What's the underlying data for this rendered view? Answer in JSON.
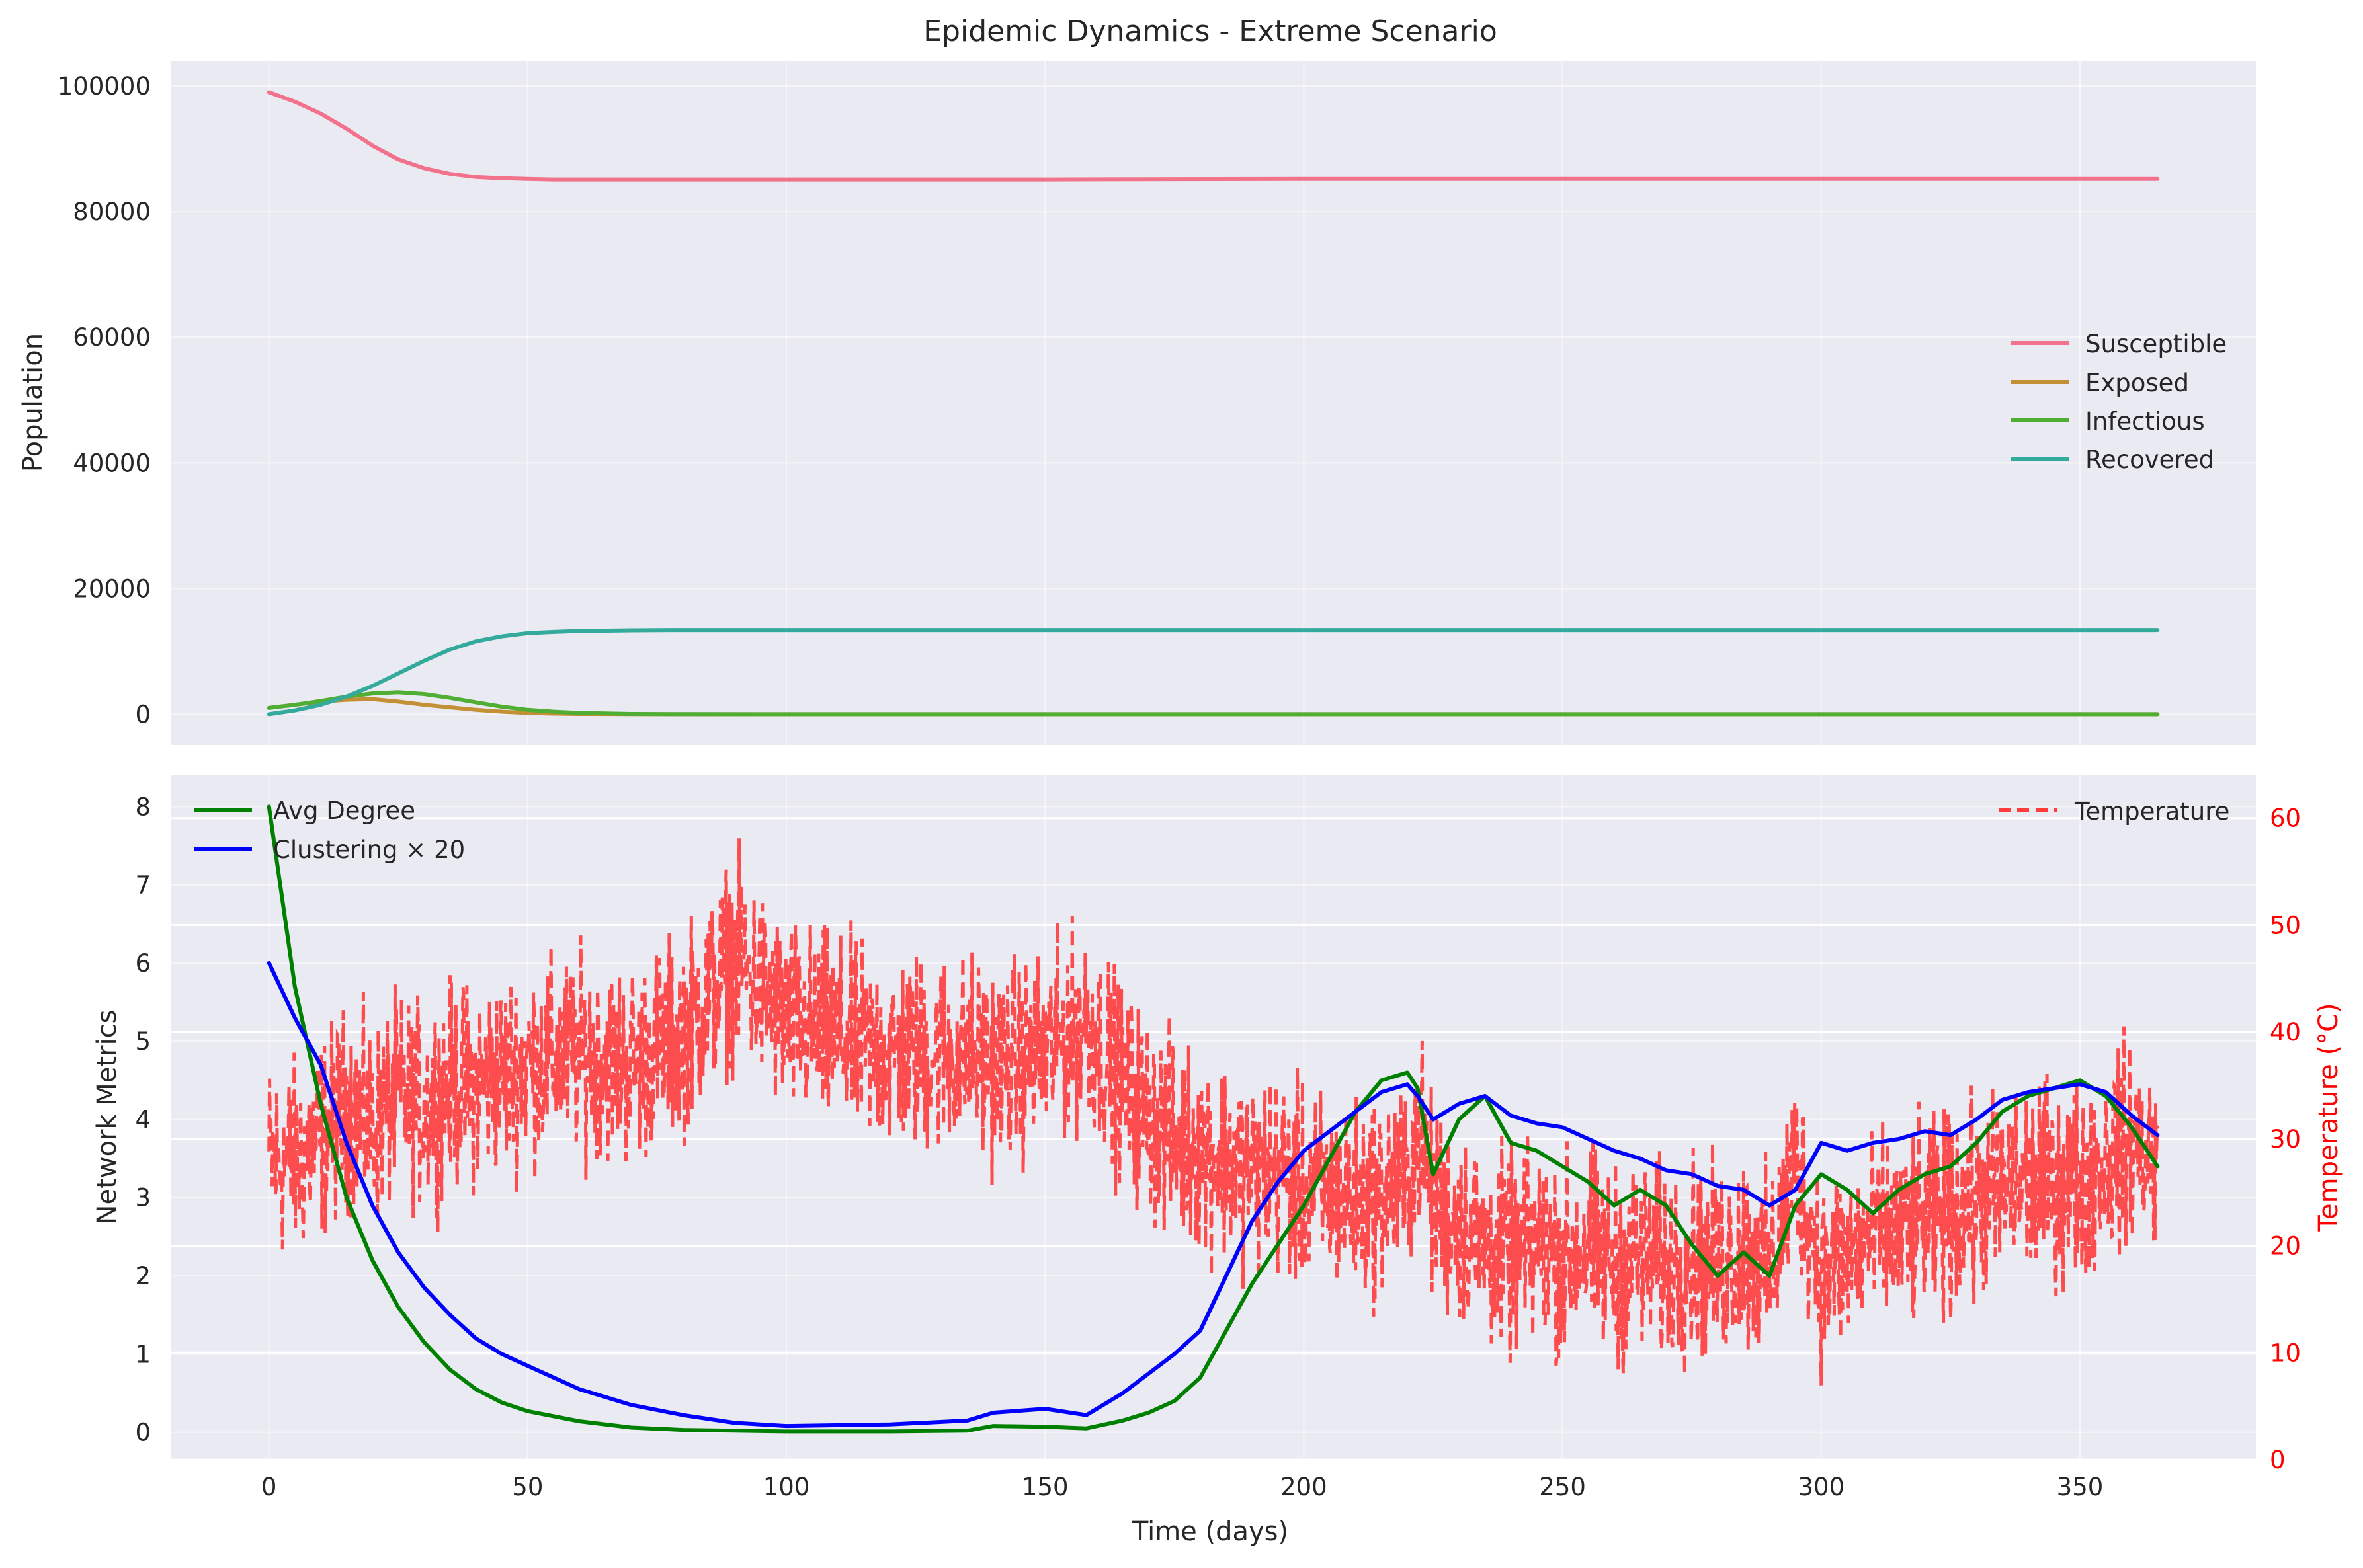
{
  "figure": {
    "title": "Epidemic Dynamics - Extreme Scenario"
  },
  "chart_data": [
    {
      "type": "line",
      "title": "Epidemic Dynamics - Extreme Scenario",
      "xlabel": "",
      "ylabel": "Population",
      "xlim": [
        -19,
        384
      ],
      "ylim": [
        -4900,
        104000
      ],
      "xticks": [
        0,
        50,
        100,
        150,
        200,
        250,
        300,
        350
      ],
      "yticks": [
        0,
        20000,
        40000,
        60000,
        80000,
        100000
      ],
      "grid": true,
      "legend_position": "center-right",
      "x": [
        0,
        5,
        10,
        15,
        20,
        25,
        30,
        35,
        40,
        45,
        50,
        55,
        60,
        70,
        80,
        100,
        150,
        200,
        250,
        300,
        365
      ],
      "series": [
        {
          "name": "Susceptible",
          "color": "#f2728c",
          "values": [
            99000,
            97500,
            95600,
            93200,
            90500,
            88300,
            86900,
            86000,
            85500,
            85300,
            85200,
            85100,
            85100,
            85100,
            85100,
            85100,
            85100,
            85200,
            85200,
            85200,
            85200
          ]
        },
        {
          "name": "Exposed",
          "color": "#c39035",
          "values": [
            1000,
            1500,
            2000,
            2300,
            2400,
            2000,
            1500,
            1100,
            700,
            400,
            200,
            100,
            50,
            10,
            0,
            0,
            0,
            0,
            0,
            0,
            0
          ]
        },
        {
          "name": "Infectious",
          "color": "#4fae33",
          "values": [
            1000,
            1500,
            2100,
            2800,
            3300,
            3500,
            3200,
            2600,
            1900,
            1200,
            700,
            400,
            200,
            50,
            10,
            0,
            0,
            0,
            0,
            0,
            0
          ]
        },
        {
          "name": "Recovered",
          "color": "#33aa9c",
          "values": [
            0,
            600,
            1500,
            2800,
            4500,
            6500,
            8500,
            10300,
            11600,
            12400,
            12900,
            13100,
            13250,
            13350,
            13400,
            13400,
            13400,
            13400,
            13400,
            13400,
            13400
          ]
        }
      ]
    },
    {
      "type": "line",
      "title": "",
      "xlabel": "Time (days)",
      "ylabel": "Network Metrics",
      "y2label": "Temperature (°C)",
      "xlim": [
        -19,
        384
      ],
      "ylim": [
        -0.35,
        8.4
      ],
      "y2lim": [
        0,
        64
      ],
      "xticks": [
        0,
        50,
        100,
        150,
        200,
        250,
        300,
        350
      ],
      "yticks": [
        0,
        1,
        2,
        3,
        4,
        5,
        6,
        7,
        8
      ],
      "y2ticks": [
        0,
        10,
        20,
        30,
        40,
        50,
        60
      ],
      "grid": true,
      "legend_position": "top-left",
      "legend2_position": "top-right",
      "x": [
        0,
        5,
        10,
        15,
        20,
        25,
        30,
        35,
        40,
        45,
        50,
        60,
        70,
        80,
        90,
        100,
        120,
        135,
        140,
        150,
        158,
        165,
        170,
        175,
        180,
        185,
        190,
        195,
        200,
        205,
        210,
        215,
        220,
        222,
        225,
        230,
        235,
        240,
        245,
        250,
        255,
        260,
        265,
        270,
        275,
        280,
        285,
        290,
        295,
        300,
        305,
        310,
        315,
        320,
        325,
        330,
        335,
        340,
        345,
        350,
        355,
        360,
        365
      ],
      "series": [
        {
          "name": "Avg Degree",
          "color": "#008000",
          "axis": "left",
          "values": [
            8.0,
            5.7,
            4.2,
            3.0,
            2.2,
            1.6,
            1.15,
            0.8,
            0.55,
            0.38,
            0.27,
            0.14,
            0.06,
            0.03,
            0.02,
            0.01,
            0.01,
            0.02,
            0.08,
            0.07,
            0.05,
            0.15,
            0.25,
            0.4,
            0.7,
            1.3,
            1.9,
            2.4,
            2.9,
            3.5,
            4.1,
            4.5,
            4.6,
            4.4,
            3.3,
            4.0,
            4.3,
            3.7,
            3.6,
            3.4,
            3.2,
            2.9,
            3.1,
            2.9,
            2.4,
            2.0,
            2.3,
            2.0,
            2.9,
            3.3,
            3.1,
            2.8,
            3.1,
            3.3,
            3.4,
            3.7,
            4.1,
            4.3,
            4.4,
            4.5,
            4.3,
            3.9,
            3.4
          ]
        },
        {
          "name": "Clustering × 20",
          "color": "#0000ff",
          "axis": "left",
          "values": [
            6.0,
            5.3,
            4.7,
            3.7,
            2.9,
            2.3,
            1.85,
            1.5,
            1.2,
            1.0,
            0.85,
            0.55,
            0.35,
            0.22,
            0.12,
            0.08,
            0.1,
            0.15,
            0.25,
            0.3,
            0.22,
            0.5,
            0.75,
            1.0,
            1.3,
            2.0,
            2.7,
            3.2,
            3.6,
            3.85,
            4.1,
            4.35,
            4.45,
            4.3,
            4.0,
            4.2,
            4.3,
            4.05,
            3.95,
            3.9,
            3.75,
            3.6,
            3.5,
            3.35,
            3.3,
            3.15,
            3.1,
            2.9,
            3.1,
            3.7,
            3.6,
            3.7,
            3.75,
            3.85,
            3.8,
            4.0,
            4.25,
            4.35,
            4.4,
            4.45,
            4.35,
            4.05,
            3.8
          ]
        },
        {
          "name": "Temperature",
          "color": "#ff3b3b",
          "axis": "right",
          "values": [
            28,
            28,
            30,
            33,
            31,
            34,
            33,
            35,
            35,
            36,
            37,
            38,
            37,
            40,
            47,
            41,
            38,
            38,
            37,
            38,
            41,
            35,
            32,
            30,
            29,
            28,
            27,
            27,
            25,
            25,
            24,
            25,
            26,
            31,
            24,
            22,
            20,
            19,
            20,
            19,
            20,
            18,
            19,
            18,
            19,
            18,
            20,
            17,
            28,
            18,
            19,
            21,
            21,
            22,
            23,
            24,
            25,
            26,
            26,
            26,
            28,
            30,
            28
          ]
        }
      ]
    }
  ]
}
